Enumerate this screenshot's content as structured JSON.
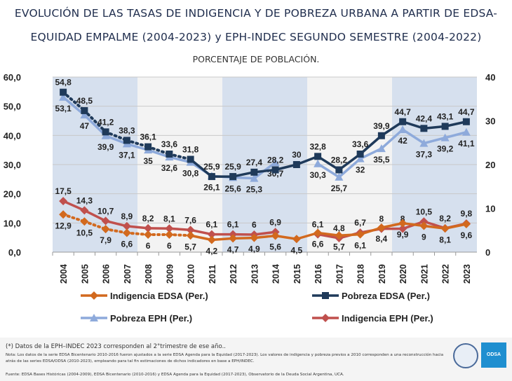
{
  "title_line1": "EVOLUCIÓN DE LAS TASAS DE INDIGENCIA Y DE POBREZA URBANA A PARTIR DE EDSA-",
  "title_line2": "EQUIDAD EMPALME (2004-2023) y EPH-INDEC SEGUNDO SEMESTRE (2004-2022)",
  "subtitle": "PORCENTAJE DE POBLACIÓN.",
  "footer": {
    "note1": "(*) Datos de la EPH–INDEC 2023 corresponden al 2°trimestre de ese año..",
    "note2": "Nota: Los datos de la serie EDSA Bicentenario 2010-2016 fueron ajustados a la serie EDSA Agenda para la Equidad (2017-2023). Los valores de indigencia y pobreza previos a 2010 corresponden a una reconstrucción hacia atrás de las series EDSA/ODSA (2010-2023), empleando para tal fin estimaciones de dichos indicadores en base a EPH/INDEC.",
    "source": "Fuente: EDSA Bases Históricas (2004-2009), EDSA Bicentenario (2010-2016) y EDSA Agenda para la Equidad (2017-2023), Observatorio de la Deuda Social Argentina, UCA.",
    "logo_text": "ODSA"
  },
  "chart_data": {
    "type": "line",
    "categories": [
      "2004",
      "2005",
      "2006",
      "2007",
      "2008",
      "2009",
      "2010",
      "2011",
      "2012",
      "2013",
      "2014",
      "2015",
      "2016",
      "2017",
      "2018",
      "2019",
      "2020",
      "2021",
      "2022",
      "2023"
    ],
    "ylim": [
      0,
      60
    ],
    "yticks": [
      "0,0",
      "10,0",
      "20,0",
      "30,0",
      "40,0",
      "50,0",
      "60,0"
    ],
    "y2lim": [
      0,
      40
    ],
    "y2ticks": [
      "0",
      "10",
      "20",
      "30",
      "40"
    ],
    "grid": true,
    "legend_placement": "bottom",
    "band_colors": [
      "#d6e0ee",
      "#f3f3f3"
    ],
    "series": [
      {
        "name": "Indigencia EDSA (Per.)",
        "color": "#d2691e",
        "marker": "diamond",
        "label_pos": "below",
        "values": [
          12.9,
          10.5,
          7.9,
          6.6,
          6.0,
          6.0,
          5.7,
          4.2,
          4.7,
          4.9,
          5.6,
          4.5,
          6.6,
          5.7,
          6.1,
          8.4,
          9.9,
          9.0,
          8.1,
          9.6
        ]
      },
      {
        "name": "Pobreza EDSA (Per.)",
        "color": "#1f3a5a",
        "marker": "square",
        "label_pos": "above",
        "values": [
          54.8,
          48.5,
          41.2,
          38.3,
          36.1,
          33.6,
          31.8,
          25.9,
          25.9,
          27.4,
          28.2,
          30.0,
          32.8,
          28.2,
          33.6,
          39.9,
          44.7,
          42.4,
          43.1,
          44.7
        ]
      },
      {
        "name": "Pobreza EPH (Per.)",
        "color": "#8eaadb",
        "marker": "triangle",
        "label_pos": "below",
        "values": [
          53.1,
          47,
          39.9,
          37.1,
          35.0,
          32.6,
          30.8,
          26.1,
          25.6,
          25.3,
          30.7,
          null,
          30.3,
          25.7,
          32.0,
          35.5,
          42.0,
          37.3,
          39.2,
          41.1
        ]
      },
      {
        "name": "Indigencia EPH (Per.)",
        "color": "#c0504d",
        "marker": "diamond",
        "label_pos": "above",
        "values": [
          17.5,
          14.3,
          10.7,
          8.9,
          8.2,
          8.1,
          7.6,
          6.1,
          6.1,
          6.0,
          6.9,
          null,
          6.1,
          4.8,
          6.7,
          8.0,
          8.0,
          10.5,
          8.2,
          9.8
        ]
      }
    ]
  }
}
